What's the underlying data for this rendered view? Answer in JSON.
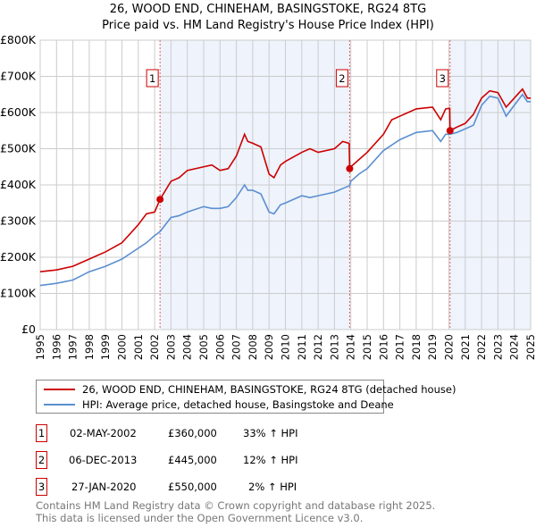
{
  "title": "26, WOOD END, CHINEHAM, BASINGSTOKE, RG24 8TG",
  "subtitle": "Price paid vs. HM Land Registry's House Price Index (HPI)",
  "colors": {
    "property": "#cc0000",
    "hpi": "#5b8fd0",
    "shade": "#eef3fc",
    "grid": "#cccccc"
  },
  "chart_data": {
    "type": "line",
    "title": "26, WOOD END, CHINEHAM, BASINGSTOKE, RG24 8TG",
    "xlim": [
      1995,
      2025
    ],
    "ylim": [
      0,
      800000
    ],
    "yticks": [
      0,
      100000,
      200000,
      300000,
      400000,
      500000,
      600000,
      700000,
      800000
    ],
    "ytick_labels": [
      "£0",
      "£100K",
      "£200K",
      "£300K",
      "£400K",
      "£500K",
      "£600K",
      "£700K",
      "£800K"
    ],
    "xticks": [
      1995,
      1996,
      1997,
      1998,
      1999,
      2000,
      2001,
      2002,
      2003,
      2004,
      2005,
      2006,
      2007,
      2008,
      2009,
      2010,
      2011,
      2012,
      2013,
      2014,
      2015,
      2016,
      2017,
      2018,
      2019,
      2020,
      2021,
      2022,
      2023,
      2024,
      2025
    ],
    "grid": true,
    "series": [
      {
        "name": "26, WOOD END, CHINEHAM, BASINGSTOKE, RG24 8TG (detached house)",
        "x": [
          1995,
          1996,
          1997,
          1998,
          1999,
          2000,
          2001,
          2001.5,
          2002,
          2002.33,
          2003,
          2003.5,
          2004,
          2005,
          2005.5,
          2006,
          2006.5,
          2007,
          2007.5,
          2007.7,
          2008,
          2008.5,
          2009,
          2009.3,
          2009.7,
          2010,
          2011,
          2011.5,
          2012,
          2013,
          2013.5,
          2013.9,
          2013.93,
          2014,
          2014.5,
          2015,
          2016,
          2016.5,
          2017,
          2018,
          2019,
          2019.5,
          2019.8,
          2020.05,
          2020.07,
          2020.5,
          2021,
          2021.5,
          2022,
          2022.5,
          2023,
          2023.5,
          2024,
          2024.5,
          2024.8,
          2025
        ],
        "y": [
          160000,
          165000,
          175000,
          195000,
          215000,
          240000,
          290000,
          320000,
          325000,
          360000,
          410000,
          420000,
          440000,
          450000,
          455000,
          440000,
          445000,
          480000,
          540000,
          520000,
          515000,
          505000,
          430000,
          420000,
          455000,
          465000,
          490000,
          500000,
          490000,
          500000,
          520000,
          515000,
          445000,
          450000,
          470000,
          490000,
          540000,
          580000,
          590000,
          610000,
          615000,
          580000,
          610000,
          612000,
          550000,
          560000,
          570000,
          595000,
          640000,
          660000,
          655000,
          615000,
          640000,
          665000,
          640000,
          640000
        ]
      },
      {
        "name": "HPI: Average price, detached house, Basingstoke and Deane",
        "x": [
          1995,
          1996,
          1997,
          1998,
          1999,
          2000,
          2001,
          2001.5,
          2002,
          2002.33,
          2003,
          2003.5,
          2004,
          2005,
          2005.5,
          2006,
          2006.5,
          2007,
          2007.5,
          2007.7,
          2008,
          2008.5,
          2009,
          2009.3,
          2009.7,
          2010,
          2011,
          2011.5,
          2012,
          2013,
          2013.5,
          2013.93,
          2014,
          2014.5,
          2015,
          2016,
          2016.5,
          2017,
          2018,
          2019,
          2019.5,
          2019.8,
          2020.07,
          2020.5,
          2021,
          2021.5,
          2022,
          2022.5,
          2023,
          2023.5,
          2024,
          2024.5,
          2024.8,
          2025
        ],
        "y": [
          122000,
          128000,
          137000,
          160000,
          175000,
          195000,
          225000,
          240000,
          260000,
          271000,
          310000,
          315000,
          325000,
          340000,
          335000,
          335000,
          340000,
          365000,
          400000,
          385000,
          385000,
          375000,
          325000,
          320000,
          345000,
          350000,
          370000,
          365000,
          370000,
          380000,
          390000,
          398000,
          410000,
          430000,
          445000,
          495000,
          510000,
          525000,
          545000,
          550000,
          520000,
          540000,
          540000,
          545000,
          555000,
          565000,
          620000,
          645000,
          640000,
          590000,
          620000,
          650000,
          630000,
          630000
        ]
      }
    ],
    "sales": [
      {
        "label": "1",
        "x": 2002.33,
        "y": 360000
      },
      {
        "label": "2",
        "x": 2013.93,
        "y": 445000
      },
      {
        "label": "3",
        "x": 2020.07,
        "y": 550000
      }
    ]
  },
  "legend": {
    "property": "26, WOOD END, CHINEHAM, BASINGSTOKE, RG24 8TG (detached house)",
    "hpi": "HPI: Average price, detached house, Basingstoke and Deane"
  },
  "table": [
    {
      "num": "1",
      "date": "02-MAY-2002",
      "price": "£360,000",
      "hpi": "33% ↑ HPI"
    },
    {
      "num": "2",
      "date": "06-DEC-2013",
      "price": "£445,000",
      "hpi": "12% ↑ HPI"
    },
    {
      "num": "3",
      "date": "27-JAN-2020",
      "price": "£550,000",
      "hpi": "2% ↑ HPI"
    }
  ],
  "footer": [
    "Contains HM Land Registry data © Crown copyright and database right 2025.",
    "This data is licensed under the Open Government Licence v3.0."
  ]
}
